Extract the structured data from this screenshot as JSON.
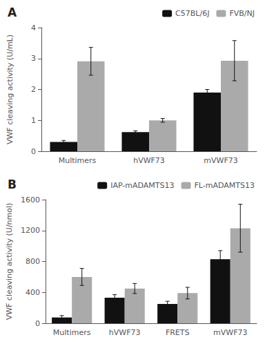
{
  "chart_data": [
    {
      "type": "bar",
      "title": "A",
      "categories": [
        "Multimers",
        "hVWF73",
        "mVWF73"
      ],
      "series": [
        {
          "name": "C57BL/6J",
          "color": "#111111",
          "values": [
            0.3,
            0.62,
            1.9
          ],
          "errors": [
            0.05,
            0.04,
            0.1
          ]
        },
        {
          "name": "FVB/NJ",
          "color": "#aaaaaa",
          "values": [
            2.91,
            1.0,
            2.93
          ],
          "errors": [
            0.45,
            0.06,
            0.65
          ]
        }
      ],
      "ylabel": "VWF cleaving activity (U/mL)",
      "ylim": [
        0,
        4
      ],
      "yticks": [
        0,
        1,
        2,
        3,
        4
      ],
      "grid": false,
      "legend": "top"
    },
    {
      "type": "bar",
      "title": "B",
      "categories": [
        "Multimers",
        "hVWF73",
        "FRETS",
        "mVWF73"
      ],
      "series": [
        {
          "name": "IAP-mADAMTS13",
          "color": "#111111",
          "values": [
            75,
            330,
            250,
            830
          ],
          "errors": [
            25,
            40,
            35,
            110
          ]
        },
        {
          "name": "FL-mADAMTS13",
          "color": "#aaaaaa",
          "values": [
            600,
            450,
            390,
            1230
          ],
          "errors": [
            110,
            65,
            75,
            310
          ]
        }
      ],
      "ylabel": "VWF cleaving activity (U/nmol)",
      "ylim": [
        0,
        1600
      ],
      "yticks": [
        0,
        400,
        800,
        1200,
        1600
      ],
      "grid": false,
      "legend": "top"
    }
  ]
}
